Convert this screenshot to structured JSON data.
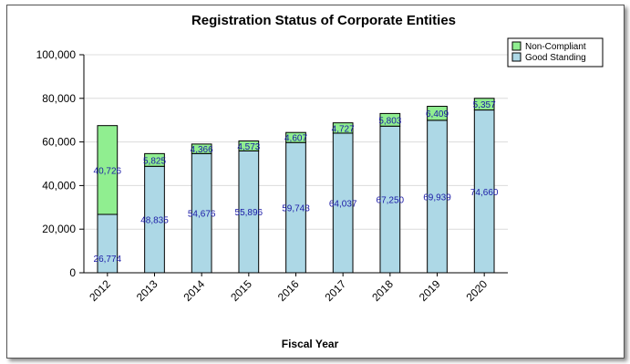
{
  "chart_data": {
    "type": "bar",
    "stacked": true,
    "title": "Registration Status of Corporate Entities",
    "xlabel": "Fiscal Year",
    "ylabel": "",
    "categories": [
      "2012",
      "2013",
      "2014",
      "2015",
      "2016",
      "2017",
      "2018",
      "2019",
      "2020"
    ],
    "series": [
      {
        "name": "Good Standing",
        "color": "#add8e6",
        "values": [
          26774,
          48835,
          54676,
          55896,
          59743,
          64037,
          67250,
          69939,
          74660
        ]
      },
      {
        "name": "Non-Compliant",
        "color": "#90ee90",
        "values": [
          40726,
          5825,
          4366,
          4573,
          4607,
          4727,
          5803,
          6409,
          5357
        ]
      }
    ],
    "data_labels": {
      "Good Standing": [
        "26,774",
        "48,835",
        "54,676",
        "55,896",
        "59,743",
        "64,037",
        "67,250",
        "69,939",
        "74,660"
      ],
      "Non-Compliant": [
        "40,726",
        "5,825",
        "4,366",
        "4,573",
        "4,607",
        "4,727",
        "5,803",
        "6,409",
        "5,357"
      ]
    },
    "ylim": [
      0,
      100000
    ],
    "yticks": [
      0,
      20000,
      40000,
      60000,
      80000,
      100000
    ],
    "ytick_labels": [
      "0",
      "20,000",
      "40,000",
      "60,000",
      "80,000",
      "100,000"
    ],
    "grid": true,
    "legend": {
      "position": "top-right",
      "entries": [
        "Non-Compliant",
        "Good Standing"
      ]
    }
  }
}
